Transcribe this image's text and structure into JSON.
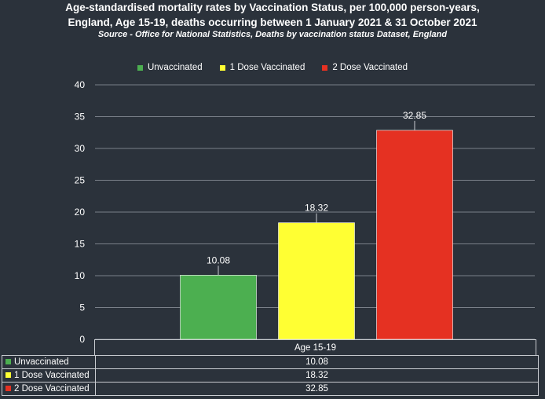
{
  "title_line1": "Age-standardised mortality rates by Vaccination Status, per 100,000 person-years,",
  "title_line2": "England, Age 15-19, deaths occurring between 1 January 2021 & 31 October 2021",
  "subtitle": "Source - Office for National Statistics, Deaths by vaccination status Dataset, England",
  "chart_data": {
    "type": "bar",
    "categories": [
      "Age 15-19"
    ],
    "series": [
      {
        "name": "Unvaccinated",
        "values": [
          10.08
        ],
        "color": "#4caf50"
      },
      {
        "name": "1 Dose Vaccinated",
        "values": [
          18.32
        ],
        "color": "#ffff33"
      },
      {
        "name": "2 Dose Vaccinated",
        "values": [
          32.85
        ],
        "color": "#e53122"
      }
    ],
    "ylim": [
      0,
      40
    ],
    "yticks": [
      "0",
      "5",
      "10",
      "15",
      "20",
      "25",
      "30",
      "35",
      "40"
    ],
    "grid": true,
    "legend": "top-center",
    "data_table": true
  }
}
